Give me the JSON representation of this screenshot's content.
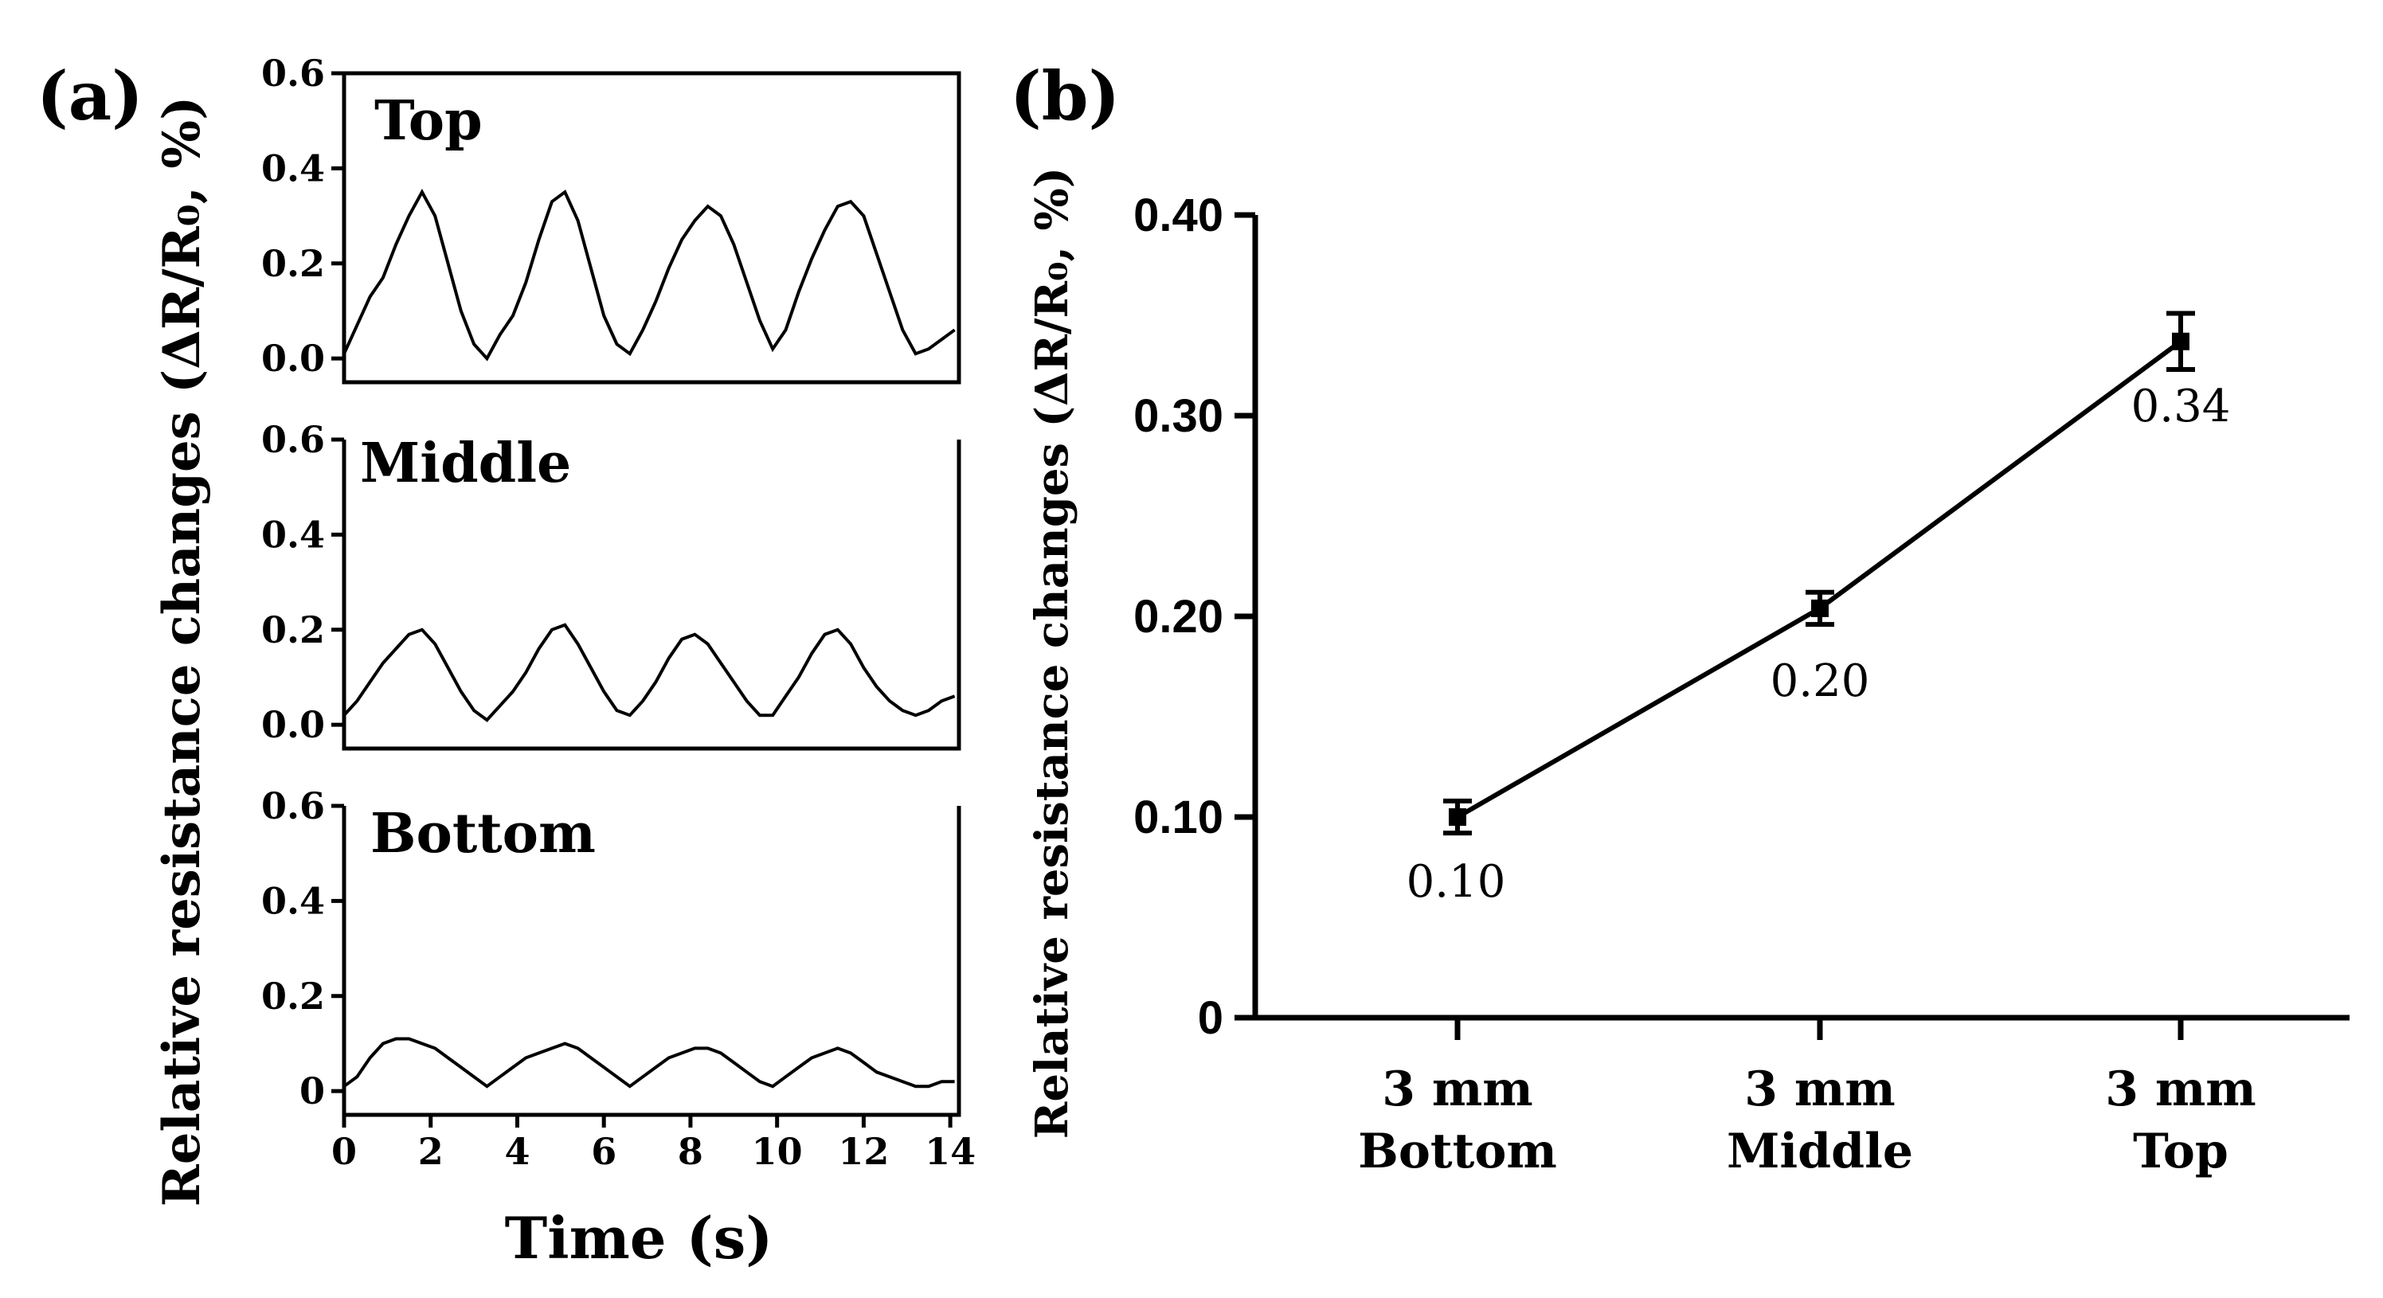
{
  "panel_a_label": "(a)",
  "panel_b_label": "(b)",
  "colors": {
    "ink": "#000000",
    "background": "#ffffff"
  },
  "chart_data": [
    {
      "id": "a-top",
      "type": "line",
      "panel_title": "Top",
      "xlabel": "Time (s)",
      "ylabel": "Relative resistance changes (ΔR/R₀, %)",
      "xlim": [
        0,
        14.2
      ],
      "ylim": [
        -0.05,
        0.6
      ],
      "yticks": [
        0.0,
        0.2,
        0.4,
        0.6
      ],
      "ytick_labels": [
        "0.0",
        "0.2",
        "0.4",
        "0.6"
      ],
      "x": [
        0,
        0.3,
        0.6,
        0.9,
        1.2,
        1.5,
        1.8,
        2.1,
        2.4,
        2.7,
        3.0,
        3.3,
        3.6,
        3.9,
        4.2,
        4.5,
        4.8,
        5.1,
        5.4,
        5.7,
        6.0,
        6.3,
        6.6,
        6.9,
        7.2,
        7.5,
        7.8,
        8.1,
        8.4,
        8.7,
        9.0,
        9.3,
        9.6,
        9.9,
        10.2,
        10.5,
        10.8,
        11.1,
        11.4,
        11.7,
        12.0,
        12.3,
        12.6,
        12.9,
        13.2,
        13.5,
        13.8,
        14.1
      ],
      "y": [
        0.01,
        0.07,
        0.13,
        0.17,
        0.24,
        0.3,
        0.35,
        0.3,
        0.2,
        0.1,
        0.03,
        0.0,
        0.05,
        0.09,
        0.16,
        0.25,
        0.33,
        0.35,
        0.29,
        0.19,
        0.09,
        0.03,
        0.01,
        0.06,
        0.12,
        0.19,
        0.25,
        0.29,
        0.32,
        0.3,
        0.24,
        0.16,
        0.08,
        0.02,
        0.06,
        0.14,
        0.21,
        0.27,
        0.32,
        0.33,
        0.3,
        0.22,
        0.14,
        0.06,
        0.01,
        0.02,
        0.04,
        0.06
      ]
    },
    {
      "id": "a-middle",
      "type": "line",
      "panel_title": "Middle",
      "xlim": [
        0,
        14.2
      ],
      "ylim": [
        -0.05,
        0.6
      ],
      "yticks": [
        0.0,
        0.2,
        0.4,
        0.6
      ],
      "ytick_labels": [
        "0.0",
        "0.2",
        "0.4",
        "0.6"
      ],
      "x": [
        0,
        0.3,
        0.6,
        0.9,
        1.2,
        1.5,
        1.8,
        2.1,
        2.4,
        2.7,
        3.0,
        3.3,
        3.6,
        3.9,
        4.2,
        4.5,
        4.8,
        5.1,
        5.4,
        5.7,
        6.0,
        6.3,
        6.6,
        6.9,
        7.2,
        7.5,
        7.8,
        8.1,
        8.4,
        8.7,
        9.0,
        9.3,
        9.6,
        9.9,
        10.2,
        10.5,
        10.8,
        11.1,
        11.4,
        11.7,
        12.0,
        12.3,
        12.6,
        12.9,
        13.2,
        13.5,
        13.8,
        14.1
      ],
      "y": [
        0.02,
        0.05,
        0.09,
        0.13,
        0.16,
        0.19,
        0.2,
        0.17,
        0.12,
        0.07,
        0.03,
        0.01,
        0.04,
        0.07,
        0.11,
        0.16,
        0.2,
        0.21,
        0.17,
        0.12,
        0.07,
        0.03,
        0.02,
        0.05,
        0.09,
        0.14,
        0.18,
        0.19,
        0.17,
        0.13,
        0.09,
        0.05,
        0.02,
        0.02,
        0.06,
        0.1,
        0.15,
        0.19,
        0.2,
        0.17,
        0.12,
        0.08,
        0.05,
        0.03,
        0.02,
        0.03,
        0.05,
        0.06
      ]
    },
    {
      "id": "a-bottom",
      "type": "line",
      "panel_title": "Bottom",
      "xlim": [
        0,
        14.2
      ],
      "ylim": [
        -0.05,
        0.6
      ],
      "yticks": [
        0.0,
        0.2,
        0.4,
        0.6
      ],
      "ytick_labels": [
        "0",
        "0.2",
        "0.4",
        "0.6"
      ],
      "xticks": [
        0,
        2,
        4,
        6,
        8,
        10,
        12,
        14
      ],
      "xtick_labels": [
        "0",
        "2",
        "4",
        "6",
        "8",
        "10",
        "12",
        "14"
      ],
      "x": [
        0,
        0.3,
        0.6,
        0.9,
        1.2,
        1.5,
        1.8,
        2.1,
        2.4,
        2.7,
        3.0,
        3.3,
        3.6,
        3.9,
        4.2,
        4.5,
        4.8,
        5.1,
        5.4,
        5.7,
        6.0,
        6.3,
        6.6,
        6.9,
        7.2,
        7.5,
        7.8,
        8.1,
        8.4,
        8.7,
        9.0,
        9.3,
        9.6,
        9.9,
        10.2,
        10.5,
        10.8,
        11.1,
        11.4,
        11.7,
        12.0,
        12.3,
        12.6,
        12.9,
        13.2,
        13.5,
        13.8,
        14.1
      ],
      "y": [
        0.01,
        0.03,
        0.07,
        0.1,
        0.11,
        0.11,
        0.1,
        0.09,
        0.07,
        0.05,
        0.03,
        0.01,
        0.03,
        0.05,
        0.07,
        0.08,
        0.09,
        0.1,
        0.09,
        0.07,
        0.05,
        0.03,
        0.01,
        0.03,
        0.05,
        0.07,
        0.08,
        0.09,
        0.09,
        0.08,
        0.06,
        0.04,
        0.02,
        0.01,
        0.03,
        0.05,
        0.07,
        0.08,
        0.09,
        0.08,
        0.06,
        0.04,
        0.03,
        0.02,
        0.01,
        0.01,
        0.02,
        0.02
      ]
    },
    {
      "id": "b",
      "type": "line",
      "ylabel": "Relative resistance changes (ΔR/R₀, %)",
      "ylim": [
        0,
        0.4
      ],
      "yticks": [
        0,
        0.1,
        0.2,
        0.3,
        0.4
      ],
      "ytick_labels": [
        "0",
        "0.10",
        "0.20",
        "0.30",
        "0.40"
      ],
      "categories": [
        [
          "3 mm",
          "Bottom"
        ],
        [
          "3 mm",
          "Middle"
        ],
        [
          "3 mm",
          "Top"
        ]
      ],
      "values": [
        0.1,
        0.204,
        0.337
      ],
      "errors": [
        0.008,
        0.008,
        0.014
      ],
      "data_labels": [
        "0.10",
        "0.20",
        "0.34"
      ]
    }
  ]
}
